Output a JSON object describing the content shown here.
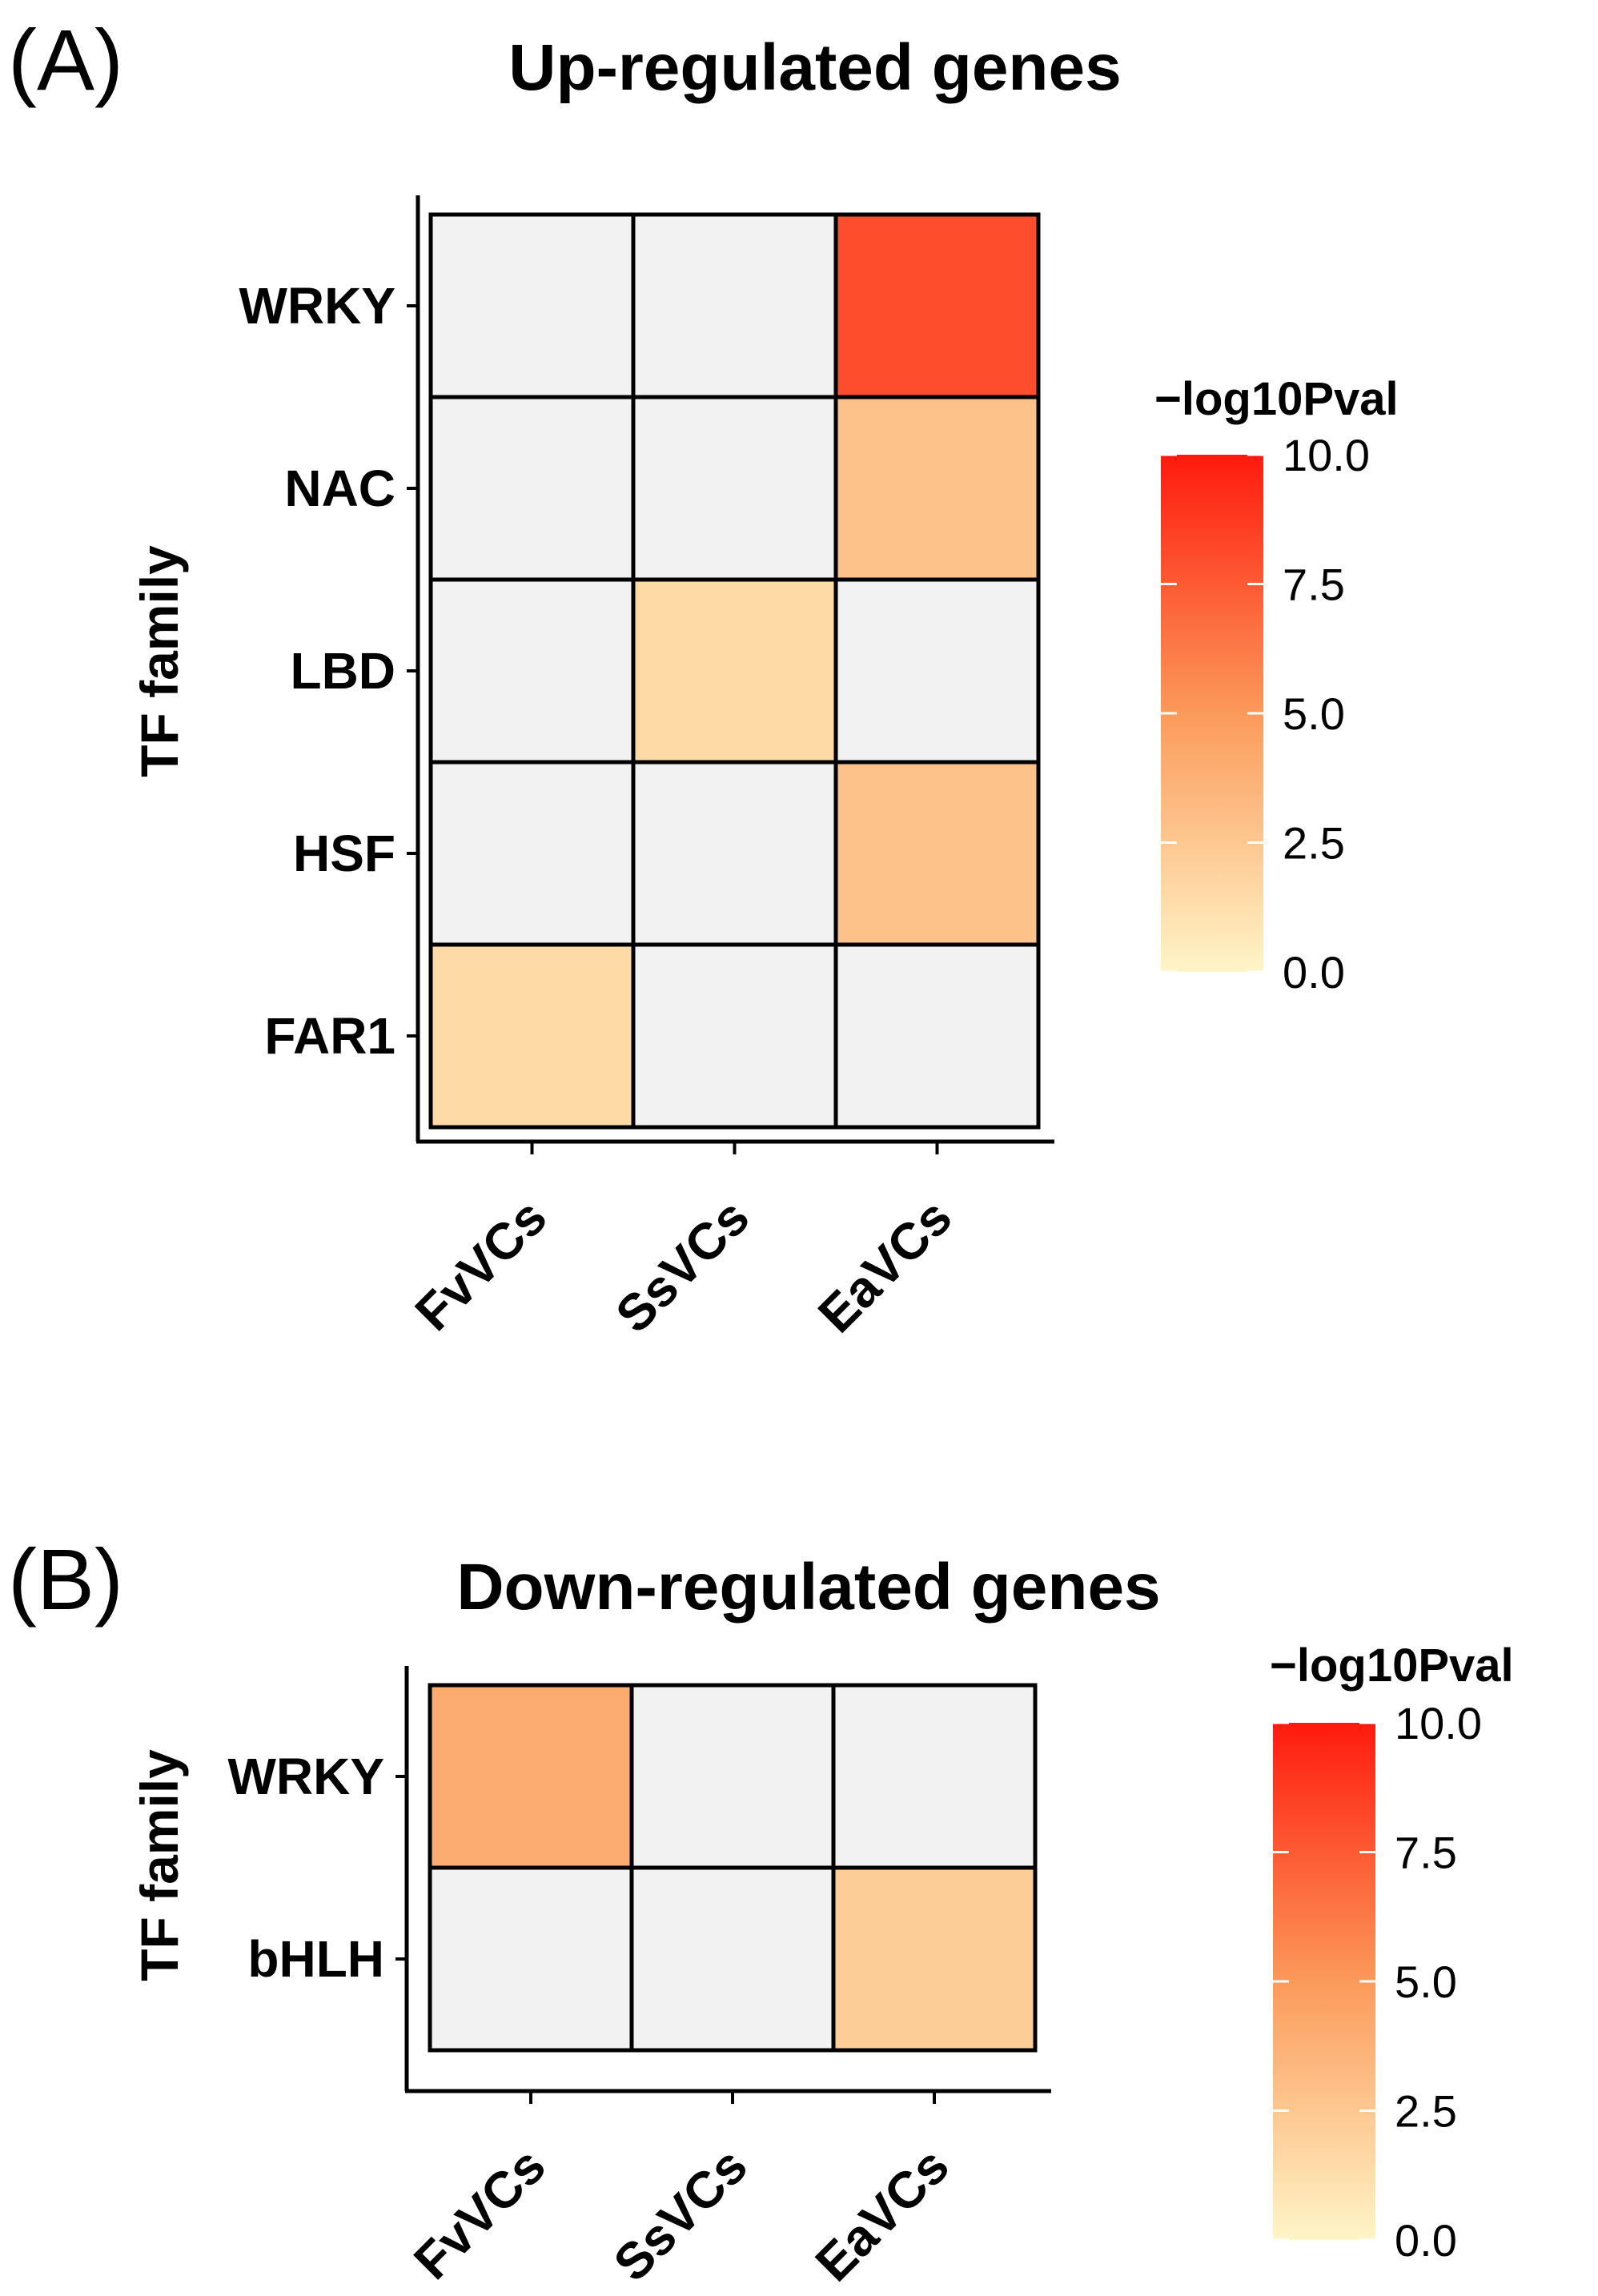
{
  "chart_data": [
    {
      "type": "heatmap",
      "panel_label": "(A)",
      "title": "Up-regulated genes",
      "xlabel": "",
      "ylabel": "TF family",
      "x_categories": [
        "FvVCs",
        "SsVCs",
        "EaVCs"
      ],
      "y_categories": [
        "WRKY",
        "NAC",
        "LBD",
        "HSF",
        "FAR1"
      ],
      "values": [
        [
          null,
          null,
          8.0
        ],
        [
          null,
          null,
          2.8
        ],
        [
          null,
          1.5,
          null
        ],
        [
          null,
          null,
          2.8
        ],
        [
          1.5,
          null,
          null
        ]
      ],
      "missing_color": "#f2f2f2",
      "grid": false,
      "legend": {
        "title": "−log10Pval",
        "min": 0,
        "max": 10,
        "ticks": [
          "0.0",
          "2.5",
          "5.0",
          "7.5",
          "10.0"
        ],
        "tick_values": [
          0,
          2.5,
          5,
          7.5,
          10
        ],
        "low_color": "#fff5c8",
        "mid_color": "#fb9a5a",
        "high_color": "#ff1a0d",
        "placement": "right"
      }
    },
    {
      "type": "heatmap",
      "panel_label": "(B)",
      "title": "Down-regulated genes",
      "xlabel": "",
      "ylabel": "TF family",
      "x_categories": [
        "FvVCs",
        "SsVCs",
        "EaVCs"
      ],
      "y_categories": [
        "WRKY",
        "bHLH"
      ],
      "values": [
        [
          4.0,
          null,
          null
        ],
        [
          null,
          null,
          2.2
        ]
      ],
      "missing_color": "#f2f2f2",
      "grid": false,
      "legend": {
        "title": "−log10Pval",
        "min": 0,
        "max": 10,
        "ticks": [
          "0.0",
          "2.5",
          "5.0",
          "7.5",
          "10.0"
        ],
        "tick_values": [
          0,
          2.5,
          5,
          7.5,
          10
        ],
        "low_color": "#fff5c8",
        "mid_color": "#fb9a5a",
        "high_color": "#ff1a0d",
        "placement": "right"
      }
    }
  ]
}
